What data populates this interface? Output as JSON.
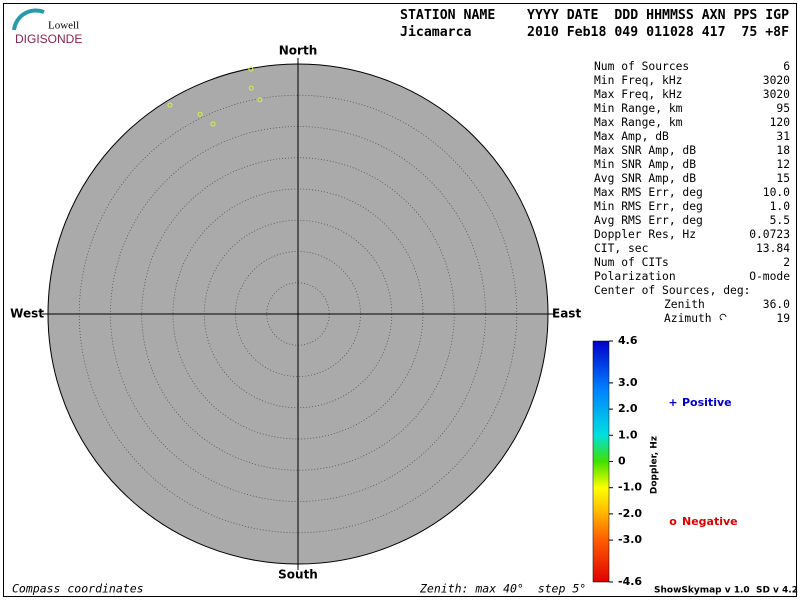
{
  "logo": {
    "top": "Lowell",
    "bottom": "DIGISONDE"
  },
  "header": {
    "line1": "STATION NAME    YYYY DATE  DDD HHMMSS AXN PPS IGP",
    "line2": "Jicamarca       2010 Feb18 049 011028 417  75 +8F"
  },
  "stats": {
    "rows": [
      [
        "Num of Sources",
        "6"
      ],
      [
        "Min Freq, kHz",
        "3020"
      ],
      [
        "Max Freq, kHz",
        "3020"
      ],
      [
        "Min Range, km",
        "95"
      ],
      [
        "Max Range, km",
        "120"
      ],
      [
        "Max Amp, dB",
        "31"
      ],
      [
        "Max SNR Amp, dB",
        "18"
      ],
      [
        "Min SNR Amp, dB",
        "12"
      ],
      [
        "Avg SNR Amp, dB",
        "15"
      ],
      [
        "Max RMS Err, deg",
        "10.0"
      ],
      [
        "Min RMS Err, deg",
        "1.0"
      ],
      [
        "Avg RMS Err, deg",
        "5.5"
      ],
      [
        "Doppler Res, Hz",
        "0.0723"
      ],
      [
        "CIT, sec",
        "13.84"
      ],
      [
        "Num of CITs",
        "2"
      ],
      [
        "Polarization",
        "O-mode"
      ]
    ],
    "center_title": "Center of Sources, deg:",
    "center_rows": [
      [
        "Zenith",
        "36.0"
      ],
      [
        "Azimuth",
        "19"
      ]
    ]
  },
  "chart_data": {
    "type": "polar-scatter",
    "directions": {
      "north": "North",
      "east": "East",
      "south": "South",
      "west": "West"
    },
    "rlim": [
      0,
      40
    ],
    "rgrid": [
      5,
      10,
      15,
      20,
      25,
      30,
      35
    ],
    "points": {
      "zenith": [
        39.9,
        36.9,
        34.8,
        39.2,
        35.6,
        33.3
      ],
      "azimuth": [
        349.1,
        348.3,
        349.9,
        328.5,
        333.9,
        335.9
      ],
      "color": "#d8f03a"
    },
    "colorbar": {
      "label": "Doppler, Hz",
      "lim": [
        -4.6,
        4.6
      ],
      "ticks": [
        4.6,
        {
          "value": 3,
          "label": "3.0"
        },
        {
          "value": 2,
          "label": "2.0"
        },
        {
          "value": 1,
          "label": "1.0"
        },
        0,
        {
          "value": -1,
          "label": "-1.0"
        },
        {
          "value": -2,
          "label": "-2.0"
        },
        {
          "value": -3,
          "label": "-3.0"
        },
        -4.6
      ]
    },
    "legend": {
      "positive": {
        "symbol": "+",
        "label": "Positive",
        "color": "#0000cc"
      },
      "negative": {
        "symbol": "o",
        "label": "Negative",
        "color": "#dd0000"
      }
    }
  },
  "footer": {
    "left": "Compass coordinates",
    "middle": "Zenith: max 40°  step 5°",
    "right": "ShowSkymap v 1.0  SD v 4.2"
  }
}
